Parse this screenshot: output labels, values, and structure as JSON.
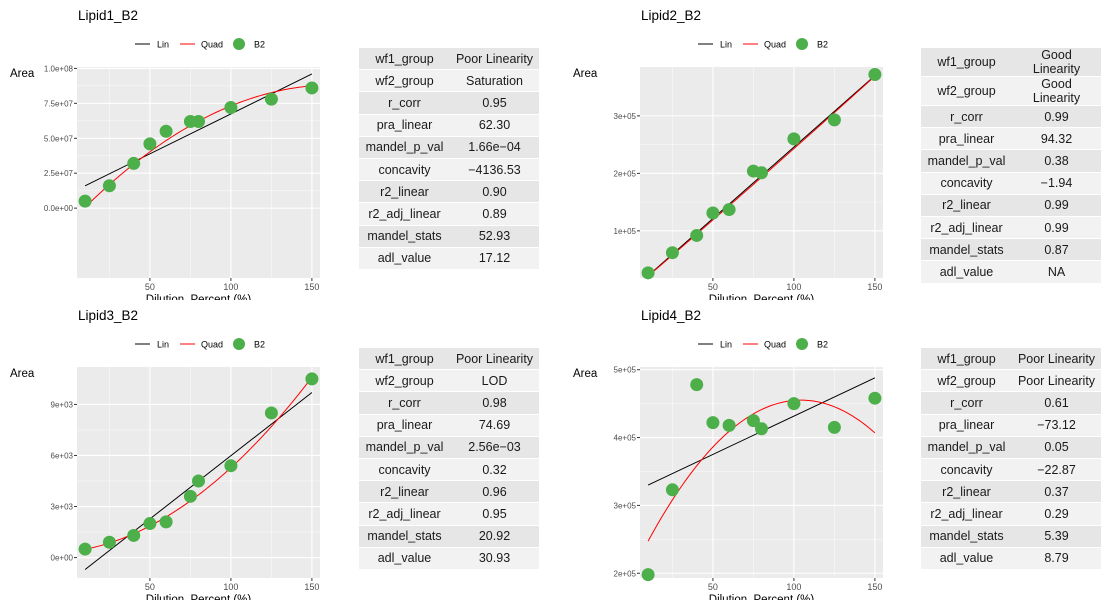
{
  "legend": {
    "lin": "Lin",
    "quad": "Quad",
    "points": "B2"
  },
  "colors": {
    "lin": "#000000",
    "quad": "#ff0000",
    "points": "#4daf4a",
    "panel_bg": "#ebebeb",
    "grid": "#ffffff"
  },
  "chart_data": [
    {
      "type": "scatter",
      "title": "Lipid1_B2",
      "xlabel": "Dilution_Percent (%)",
      "ylabel": "Area",
      "xticks": [
        "50",
        "100",
        "150"
      ],
      "yticks": [
        "0.0e+00",
        "2.5e+07",
        "5.0e+07",
        "7.5e+07",
        "1.0e+08"
      ],
      "xlim": [
        5,
        155
      ],
      "ylim": [
        -0.5,
        1.01
      ],
      "ytick_values": [
        0,
        0.25,
        0.5,
        0.75,
        1.0
      ],
      "points": {
        "x": [
          10,
          25,
          40,
          50,
          60,
          75,
          80,
          100,
          125,
          150
        ],
        "y": [
          0.05,
          0.16,
          0.32,
          0.46,
          0.55,
          0.62,
          0.62,
          0.72,
          0.78,
          0.86
        ]
      },
      "lin": {
        "x": [
          10,
          150
        ],
        "y": [
          0.16,
          0.96
        ]
      },
      "quad": {
        "coef": [
          -0.1113,
          0.01213,
          -3.7e-05
        ],
        "x0": 10,
        "x1": 150
      },
      "table": [
        [
          "wf1_group",
          "Poor Linearity"
        ],
        [
          "wf2_group",
          "Saturation"
        ],
        [
          "r_corr",
          "0.95"
        ],
        [
          "pra_linear",
          "62.30"
        ],
        [
          "mandel_p_val",
          "1.66e−04"
        ],
        [
          "concavity",
          "−4136.53"
        ],
        [
          "r2_linear",
          "0.90"
        ],
        [
          "r2_adj_linear",
          "0.89"
        ],
        [
          "mandel_stats",
          "52.93"
        ],
        [
          "adl_value",
          "17.12"
        ]
      ]
    },
    {
      "type": "scatter",
      "title": "Lipid2_B2",
      "xlabel": "Dilution_Percent (%)",
      "ylabel": "Area",
      "xticks": [
        "50",
        "100",
        "150"
      ],
      "yticks": [
        "1e+05",
        "2e+05",
        "3e+05"
      ],
      "xlim": [
        5,
        155
      ],
      "ylim": [
        0.18,
        3.85
      ],
      "ytick_values": [
        1,
        2,
        3
      ],
      "points": {
        "x": [
          10,
          25,
          40,
          50,
          60,
          75,
          80,
          100,
          125,
          150
        ],
        "y": [
          0.27,
          0.62,
          0.92,
          1.31,
          1.37,
          2.04,
          2.01,
          2.6,
          2.93,
          3.72
        ]
      },
      "lin": {
        "x": [
          10,
          150
        ],
        "y": [
          0.22,
          3.7
        ]
      },
      "quad": {
        "coef": [
          -0.03,
          0.0242,
          4e-06
        ],
        "x0": 10,
        "x1": 150
      },
      "table": [
        [
          "wf1_group",
          "Good Linearity"
        ],
        [
          "wf2_group",
          "Good Linearity"
        ],
        [
          "r_corr",
          "0.99"
        ],
        [
          "pra_linear",
          "94.32"
        ],
        [
          "mandel_p_val",
          "0.38"
        ],
        [
          "concavity",
          "−1.94"
        ],
        [
          "r2_linear",
          "0.99"
        ],
        [
          "r2_adj_linear",
          "0.99"
        ],
        [
          "mandel_stats",
          "0.87"
        ],
        [
          "adl_value",
          "NA"
        ]
      ]
    },
    {
      "type": "scatter",
      "title": "Lipid3_B2",
      "xlabel": "Dilution_Percent (%)",
      "ylabel": "Area",
      "xticks": [
        "50",
        "100",
        "150"
      ],
      "yticks": [
        "0e+00",
        "3e+03",
        "6e+03",
        "9e+03"
      ],
      "xlim": [
        5,
        155
      ],
      "ylim": [
        -1.2,
        11.2
      ],
      "ytick_values": [
        0,
        3,
        6,
        9
      ],
      "points": {
        "x": [
          10,
          25,
          40,
          50,
          60,
          75,
          80,
          100,
          125,
          150
        ],
        "y": [
          0.5,
          0.9,
          1.3,
          2.0,
          2.1,
          3.6,
          4.5,
          5.4,
          8.5,
          10.5
        ]
      },
      "lin": {
        "x": [
          10,
          150
        ],
        "y": [
          -0.7,
          9.7
        ]
      },
      "quad": {
        "coef": [
          0.33,
          0.0116,
          0.000379
        ],
        "x0": 10,
        "x1": 150
      },
      "table": [
        [
          "wf1_group",
          "Poor Linearity"
        ],
        [
          "wf2_group",
          "LOD"
        ],
        [
          "r_corr",
          "0.98"
        ],
        [
          "pra_linear",
          "74.69"
        ],
        [
          "mandel_p_val",
          "2.56e−03"
        ],
        [
          "concavity",
          "0.32"
        ],
        [
          "r2_linear",
          "0.96"
        ],
        [
          "r2_adj_linear",
          "0.95"
        ],
        [
          "mandel_stats",
          "20.92"
        ],
        [
          "adl_value",
          "30.93"
        ]
      ]
    },
    {
      "type": "scatter",
      "title": "Lipid4_B2",
      "xlabel": "Dilution_Percent (%)",
      "ylabel": "Area",
      "xticks": [
        "50",
        "100",
        "150"
      ],
      "yticks": [
        "2e+05",
        "3e+05",
        "4e+05",
        "5e+05"
      ],
      "xlim": [
        5,
        155
      ],
      "ylim": [
        1.93,
        5.04
      ],
      "ytick_values": [
        2,
        3,
        4,
        5
      ],
      "points": {
        "x": [
          10,
          25,
          40,
          50,
          60,
          75,
          80,
          100,
          125,
          150
        ],
        "y": [
          1.98,
          3.23,
          4.78,
          4.22,
          4.18,
          4.25,
          4.13,
          4.5,
          4.15,
          4.58
        ]
      },
      "lin": {
        "x": [
          10,
          150
        ],
        "y": [
          3.3,
          4.88
        ]
      },
      "quad": {
        "coef": [
          2.01,
          0.04866,
          -0.0002329
        ],
        "x0": 10,
        "x1": 150
      },
      "table": [
        [
          "wf1_group",
          "Poor Linearity"
        ],
        [
          "wf2_group",
          "Poor Linearity"
        ],
        [
          "r_corr",
          "0.61"
        ],
        [
          "pra_linear",
          "−73.12"
        ],
        [
          "mandel_p_val",
          "0.05"
        ],
        [
          "concavity",
          "−22.87"
        ],
        [
          "r2_linear",
          "0.37"
        ],
        [
          "r2_adj_linear",
          "0.29"
        ],
        [
          "mandel_stats",
          "5.39"
        ],
        [
          "adl_value",
          "8.79"
        ]
      ]
    }
  ]
}
